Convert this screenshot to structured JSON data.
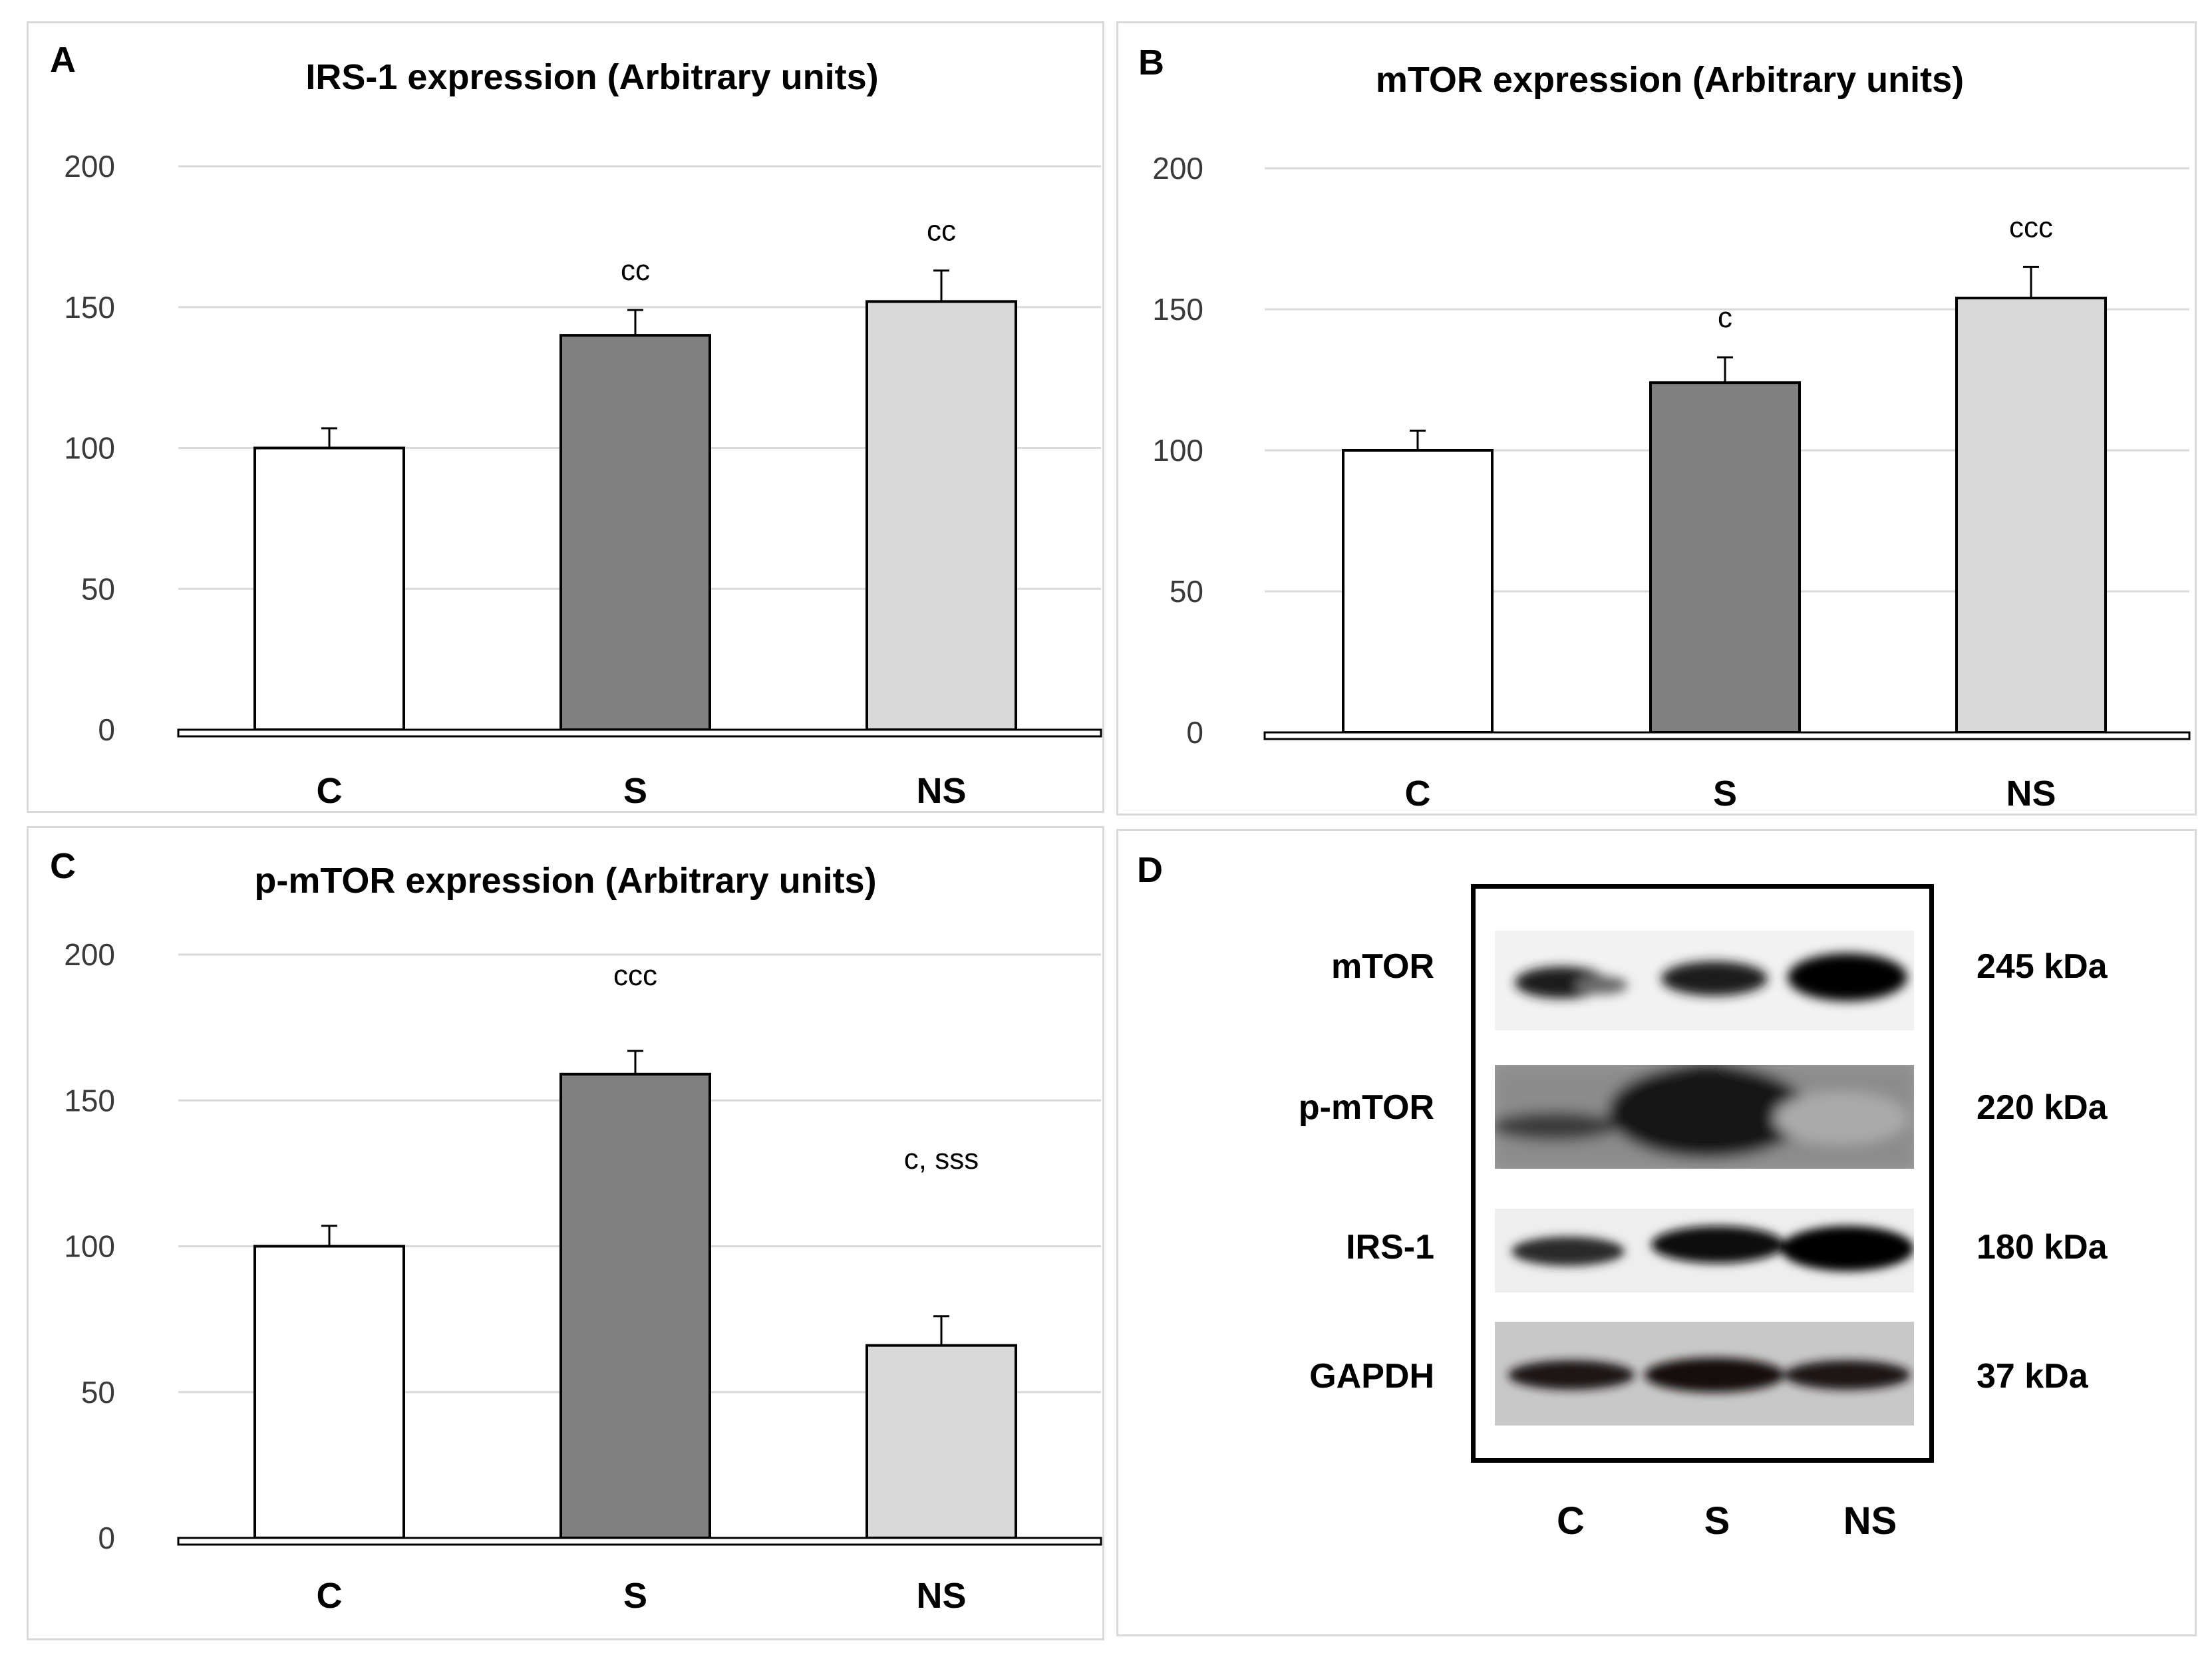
{
  "colors": {
    "C": "#ffffff",
    "S": "#808080",
    "NS": "#d9d9d9",
    "grid": "#d9d9d9",
    "panel_border": "#d9d9d9"
  },
  "chart_data": [
    {
      "id": "A",
      "panel_letter": "A",
      "type": "bar",
      "title": "IRS-1 expression (Arbitrary units)",
      "categories": [
        "C",
        "S",
        "NS"
      ],
      "values": [
        100,
        140,
        152
      ],
      "errors": [
        7,
        9,
        11
      ],
      "annotations": [
        "",
        "cc",
        "cc"
      ],
      "ylim": [
        0,
        200
      ],
      "yticks": [
        0,
        50,
        100,
        150,
        200
      ],
      "xlabel": "",
      "ylabel": "",
      "grid": true
    },
    {
      "id": "B",
      "panel_letter": "B",
      "type": "bar",
      "title": "mTOR expression (Arbitrary units)",
      "categories": [
        "C",
        "S",
        "NS"
      ],
      "values": [
        100,
        124,
        154
      ],
      "errors": [
        7,
        9,
        11
      ],
      "annotations": [
        "",
        "c",
        "ccc"
      ],
      "ylim": [
        0,
        200
      ],
      "yticks": [
        0,
        50,
        100,
        150,
        200
      ],
      "xlabel": "",
      "ylabel": "",
      "grid": true
    },
    {
      "id": "C",
      "panel_letter": "C",
      "type": "bar",
      "title": "p-mTOR expression (Arbitrary units)",
      "categories": [
        "C",
        "S",
        "NS"
      ],
      "values": [
        100,
        159,
        66
      ],
      "errors": [
        7,
        8,
        10
      ],
      "annotations": [
        "",
        "ccc",
        "c, sss"
      ],
      "ylim": [
        0,
        200
      ],
      "yticks": [
        0,
        50,
        100,
        150,
        200
      ],
      "xlabel": "",
      "ylabel": "",
      "grid": true
    }
  ],
  "blot": {
    "panel_letter": "D",
    "lanes": [
      "C",
      "S",
      "NS"
    ],
    "rows": [
      {
        "protein": "mTOR",
        "size": "245 kDa"
      },
      {
        "protein": "p-mTOR",
        "size": "220 kDa"
      },
      {
        "protein": "IRS-1",
        "size": "180 kDa"
      },
      {
        "protein": "GAPDH",
        "size": "37 kDa"
      }
    ]
  }
}
